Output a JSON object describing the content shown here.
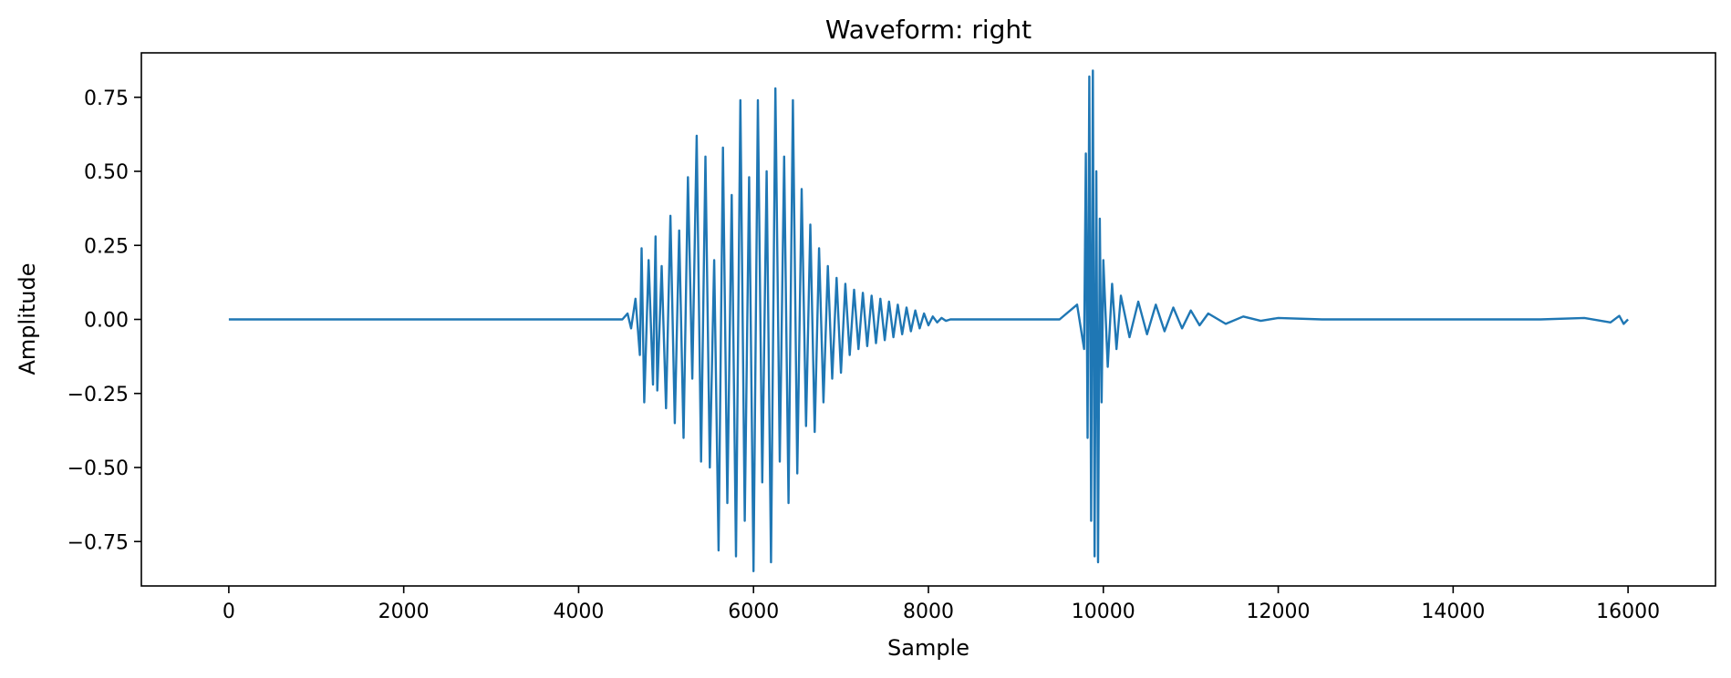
{
  "chart_data": {
    "type": "line",
    "title": "Waveform: right",
    "xlabel": "Sample",
    "ylabel": "Amplitude",
    "xlim": [
      -1000,
      17000
    ],
    "ylim": [
      -0.9,
      0.9
    ],
    "x_ticks": [
      0,
      2000,
      4000,
      6000,
      8000,
      10000,
      12000,
      14000,
      16000
    ],
    "y_ticks": [
      -0.75,
      -0.5,
      -0.25,
      0.0,
      0.25,
      0.5,
      0.75
    ],
    "x_tick_labels": [
      "0",
      "2000",
      "4000",
      "6000",
      "8000",
      "10000",
      "12000",
      "14000",
      "16000"
    ],
    "y_tick_labels": [
      "−0.75",
      "−0.50",
      "−0.25",
      "0.00",
      "0.25",
      "0.50",
      "0.75"
    ],
    "grid": false,
    "series_color": "#1f77b4",
    "series": [
      {
        "x": [
          0,
          4500,
          4560,
          4600,
          4650,
          4700,
          4720,
          4750,
          4800,
          4850,
          4880,
          4900,
          4950,
          5000,
          5050,
          5100,
          5150,
          5200,
          5250,
          5300,
          5350,
          5400,
          5450,
          5500,
          5550,
          5600,
          5650,
          5700,
          5750,
          5800,
          5850,
          5900,
          5950,
          6000,
          6050,
          6100,
          6150,
          6200,
          6250,
          6300,
          6350,
          6400,
          6450,
          6500,
          6550,
          6600,
          6650,
          6700,
          6750,
          6800,
          6850,
          6900,
          6950,
          7000,
          7050,
          7100,
          7150,
          7200,
          7250,
          7300,
          7350,
          7400,
          7450,
          7500,
          7550,
          7600,
          7650,
          7700,
          7750,
          7800,
          7850,
          7900,
          7950,
          8000,
          8050,
          8100,
          8150,
          8200,
          8250,
          8300,
          8350,
          8400,
          8450,
          8500,
          8550,
          8600,
          8700,
          8800,
          8900,
          9000,
          9200,
          9500,
          9700,
          9780,
          9800,
          9820,
          9840,
          9860,
          9880,
          9900,
          9920,
          9940,
          9960,
          9980,
          10000,
          10050,
          10100,
          10150,
          10200,
          10300,
          10400,
          10500,
          10600,
          10700,
          10800,
          10900,
          11000,
          11100,
          11200,
          11400,
          11600,
          11800,
          12000,
          12500,
          13000,
          14000,
          15000,
          15500,
          15800,
          15900,
          15950,
          16000
        ],
        "values": [
          0.0,
          0.0,
          0.02,
          -0.03,
          0.07,
          -0.12,
          0.24,
          -0.28,
          0.2,
          -0.22,
          0.28,
          -0.24,
          0.18,
          -0.3,
          0.35,
          -0.35,
          0.3,
          -0.4,
          0.48,
          -0.2,
          0.62,
          -0.48,
          0.55,
          -0.5,
          0.2,
          -0.78,
          0.58,
          -0.62,
          0.42,
          -0.8,
          0.74,
          -0.68,
          0.48,
          -0.85,
          0.74,
          -0.55,
          0.5,
          -0.82,
          0.78,
          -0.48,
          0.55,
          -0.62,
          0.74,
          -0.52,
          0.44,
          -0.36,
          0.32,
          -0.38,
          0.24,
          -0.28,
          0.18,
          -0.2,
          0.14,
          -0.18,
          0.12,
          -0.12,
          0.1,
          -0.1,
          0.09,
          -0.09,
          0.08,
          -0.08,
          0.07,
          -0.07,
          0.06,
          -0.06,
          0.05,
          -0.05,
          0.04,
          -0.04,
          0.03,
          -0.03,
          0.02,
          -0.02,
          0.01,
          -0.01,
          0.005,
          -0.005,
          0.0,
          0.0,
          0.0,
          0.0,
          0.0,
          0.0,
          0.0,
          0.0,
          0.0,
          0.0,
          0.0,
          0.0,
          0.0,
          0.0,
          0.05,
          -0.1,
          0.56,
          -0.4,
          0.82,
          -0.68,
          0.84,
          -0.8,
          0.5,
          -0.82,
          0.34,
          -0.28,
          0.2,
          -0.16,
          0.12,
          -0.1,
          0.08,
          -0.06,
          0.06,
          -0.05,
          0.05,
          -0.04,
          0.04,
          -0.03,
          0.03,
          -0.02,
          0.02,
          -0.015,
          0.01,
          -0.005,
          0.005,
          0.0,
          0.0,
          0.0,
          0.0,
          0.005,
          -0.01,
          0.012,
          -0.015,
          0.0
        ]
      }
    ]
  }
}
